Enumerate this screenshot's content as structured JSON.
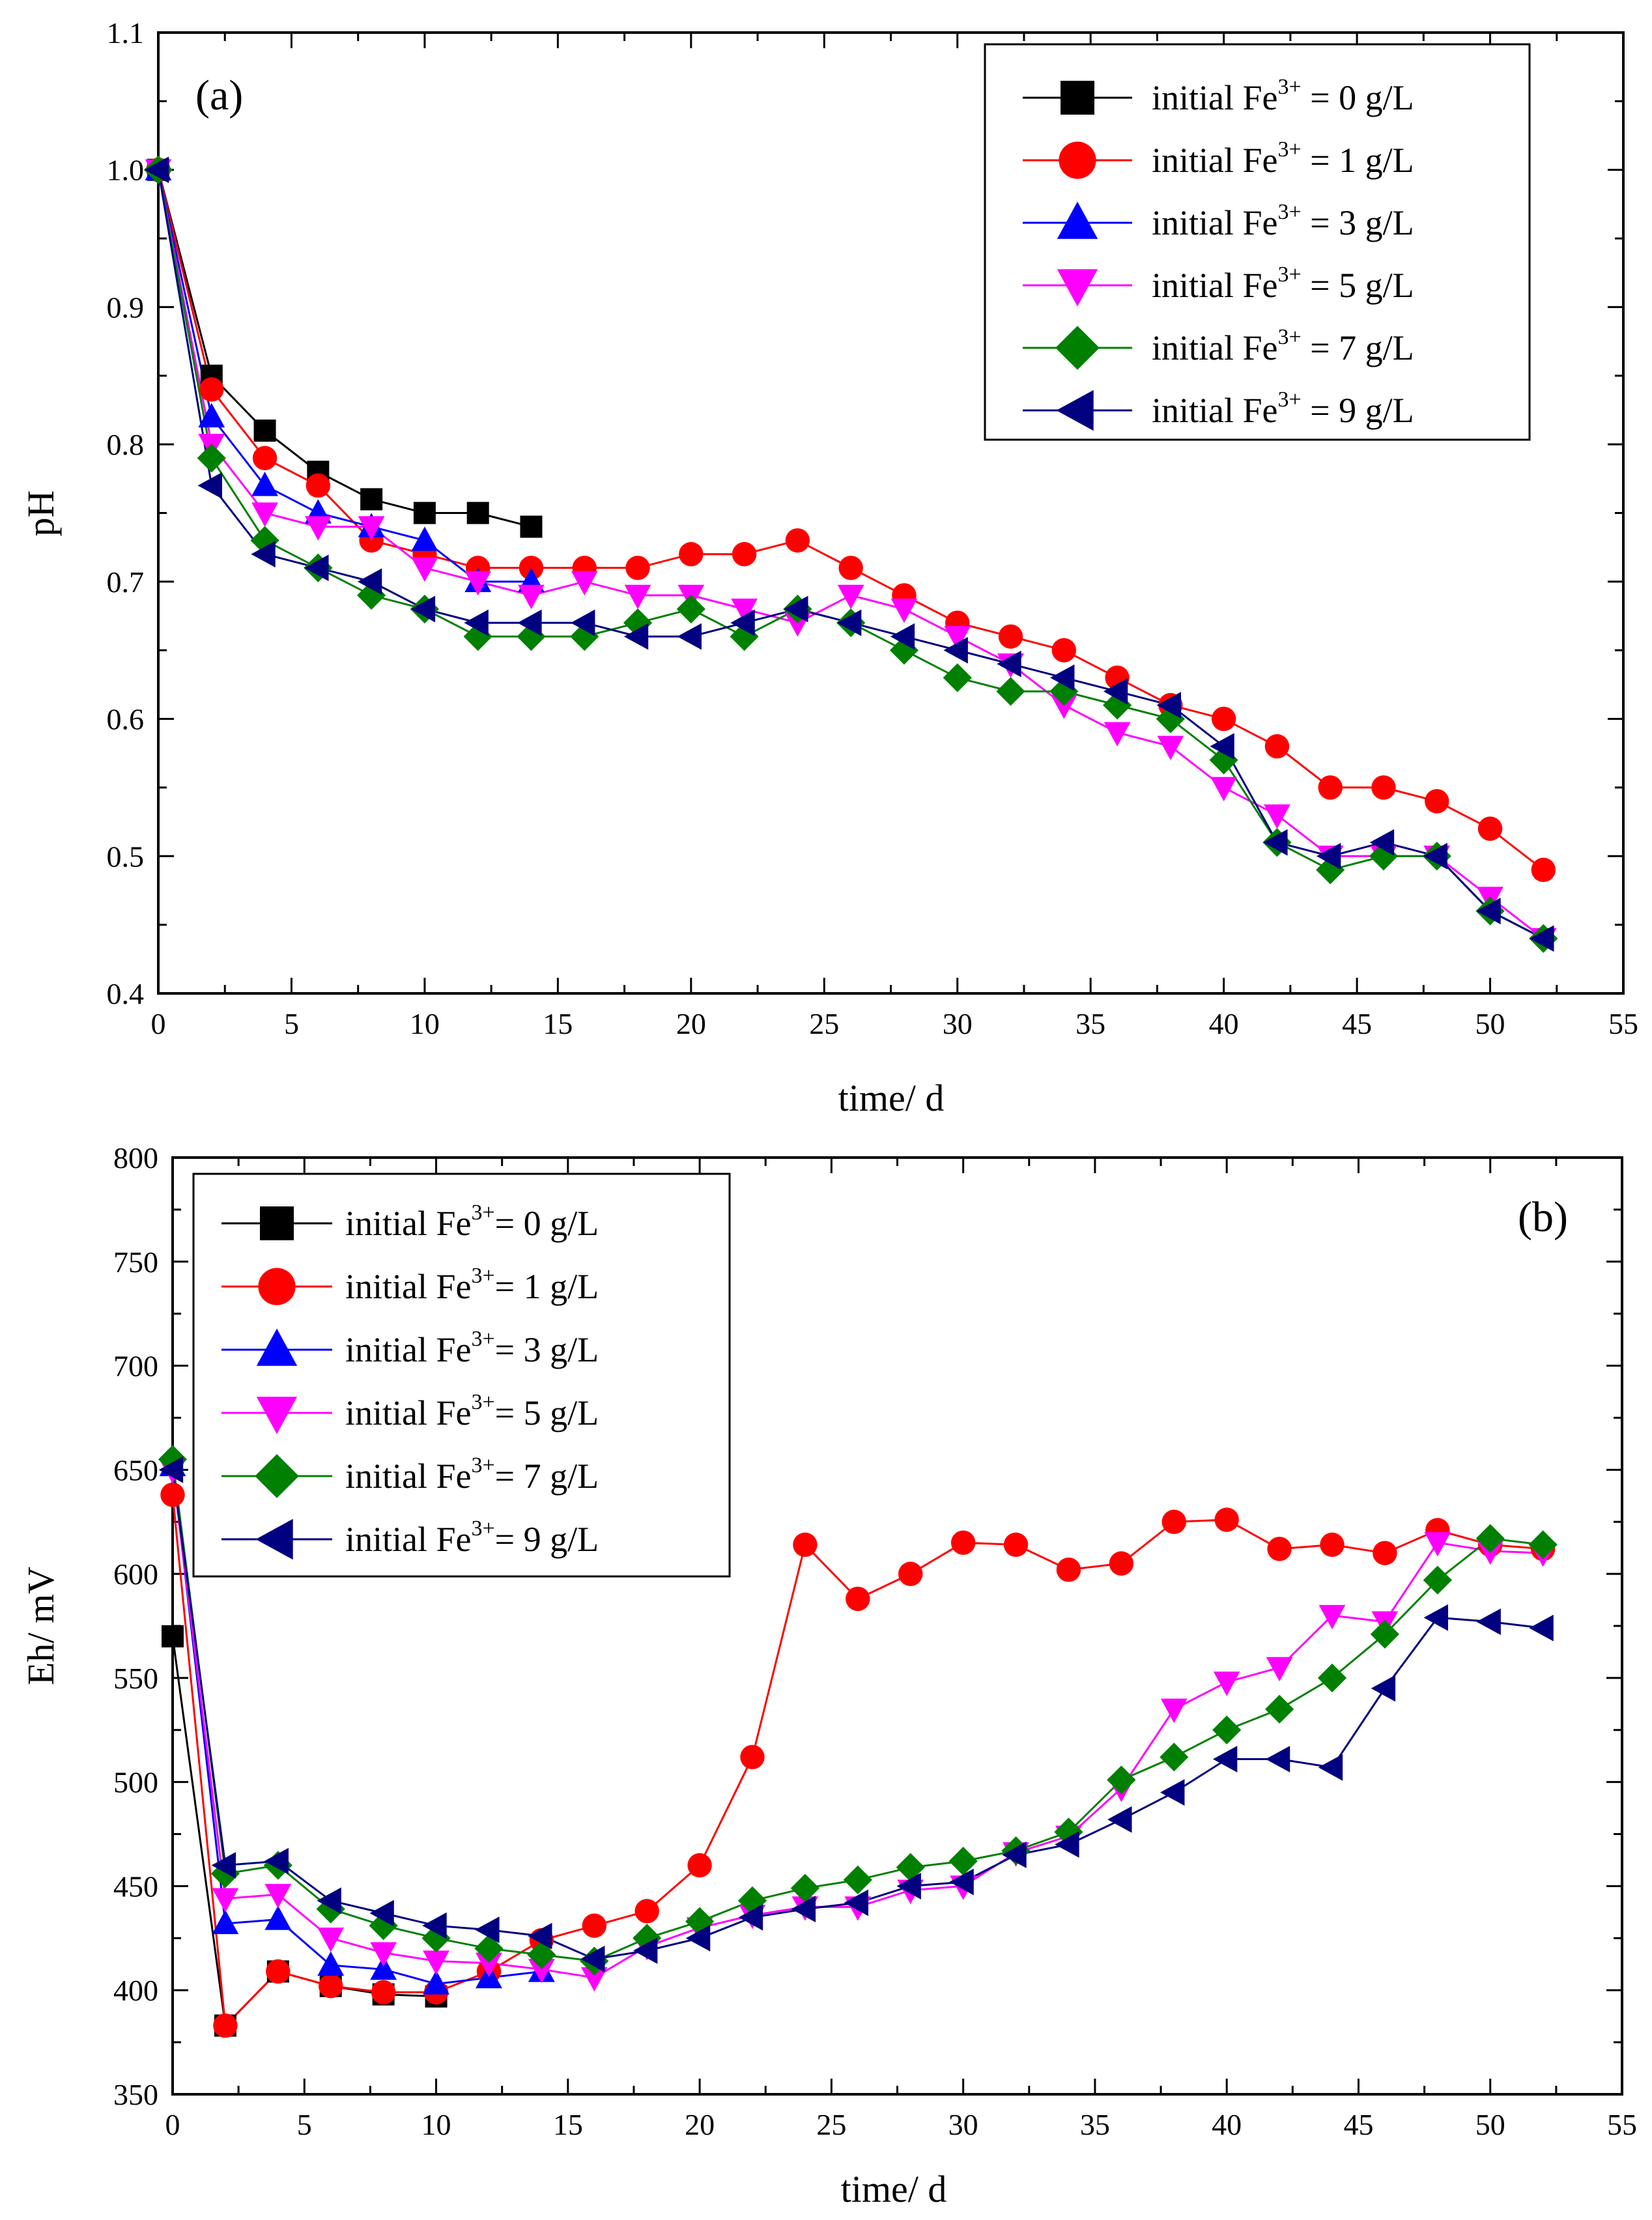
{
  "figure": {
    "legend_text_prefix": "initial Fe",
    "legend_text_sup": "3+",
    "colors": {
      "Fe0": "#000000",
      "Fe1": "#ff0000",
      "Fe3": "#0000ff",
      "Fe5": "#ff00ff",
      "Fe7": "#008000",
      "Fe9": "#000080"
    }
  },
  "chart_data": [
    {
      "id": "a",
      "type": "line",
      "panel_label": "(a)",
      "xlabel": "time/ d",
      "ylabel": "pH",
      "xlim": [
        0,
        55
      ],
      "ylim": [
        0.4,
        1.1
      ],
      "xticks": [
        0,
        5,
        10,
        15,
        20,
        25,
        30,
        35,
        40,
        45,
        50,
        55
      ],
      "yticks": [
        0.4,
        0.5,
        0.6,
        0.7,
        0.8,
        0.9,
        1.0,
        1.1
      ],
      "ytick_labels": [
        "0.4",
        "0.5",
        "0.6",
        "0.7",
        "0.8",
        "0.9",
        "1.0",
        "1.1"
      ],
      "legend_position": "top-right",
      "series": [
        {
          "key": "Fe0",
          "name": "initial Fe3+ = 0 g/L",
          "legend_suffix": "= 0 g/L",
          "marker": "square",
          "x": [
            0,
            2,
            4,
            6,
            8,
            10,
            12,
            14
          ],
          "y": [
            1.0,
            0.85,
            0.81,
            0.78,
            0.76,
            0.75,
            0.75,
            0.74
          ]
        },
        {
          "key": "Fe1",
          "name": "initial Fe3+ = 1 g/L",
          "legend_suffix": "= 1 g/L",
          "marker": "circle",
          "x": [
            0,
            2,
            4,
            6,
            8,
            10,
            12,
            14,
            16,
            18,
            20,
            22,
            24,
            26,
            28,
            30,
            32,
            34,
            36,
            38,
            40,
            42,
            44,
            46,
            48,
            50,
            52
          ],
          "y": [
            1.0,
            0.84,
            0.79,
            0.77,
            0.73,
            0.72,
            0.71,
            0.71,
            0.71,
            0.71,
            0.72,
            0.72,
            0.73,
            0.71,
            0.69,
            0.67,
            0.66,
            0.65,
            0.63,
            0.61,
            0.6,
            0.58,
            0.55,
            0.55,
            0.54,
            0.52,
            0.49
          ]
        },
        {
          "key": "Fe3",
          "name": "initial Fe3+ = 3 g/L",
          "legend_suffix": "= 3 g/L",
          "marker": "triangle-up",
          "x": [
            0,
            2,
            4,
            6,
            8,
            10,
            12,
            14
          ],
          "y": [
            1.0,
            0.82,
            0.77,
            0.75,
            0.74,
            0.73,
            0.7,
            0.7
          ]
        },
        {
          "key": "Fe5",
          "name": "initial Fe3+ = 5 g/L",
          "legend_suffix": "= 5 g/L",
          "marker": "triangle-down",
          "x": [
            0,
            2,
            4,
            6,
            8,
            10,
            12,
            14,
            16,
            18,
            20,
            22,
            24,
            26,
            28,
            30,
            32,
            34,
            36,
            38,
            40,
            42,
            44,
            46,
            48,
            50,
            52
          ],
          "y": [
            1.0,
            0.8,
            0.75,
            0.74,
            0.74,
            0.71,
            0.7,
            0.69,
            0.7,
            0.69,
            0.69,
            0.68,
            0.67,
            0.69,
            0.68,
            0.66,
            0.64,
            0.61,
            0.59,
            0.58,
            0.55,
            0.53,
            0.5,
            0.5,
            0.5,
            0.47,
            0.44
          ]
        },
        {
          "key": "Fe7",
          "name": "initial Fe3+ = 7 g/L",
          "legend_suffix": "= 7 g/L",
          "marker": "diamond",
          "x": [
            0,
            2,
            4,
            6,
            8,
            10,
            12,
            14,
            16,
            18,
            20,
            22,
            24,
            26,
            28,
            30,
            32,
            34,
            36,
            38,
            40,
            42,
            44,
            46,
            48,
            50,
            52
          ],
          "y": [
            1.0,
            0.79,
            0.73,
            0.71,
            0.69,
            0.68,
            0.66,
            0.66,
            0.66,
            0.67,
            0.68,
            0.66,
            0.68,
            0.67,
            0.65,
            0.63,
            0.62,
            0.62,
            0.61,
            0.6,
            0.57,
            0.51,
            0.49,
            0.5,
            0.5,
            0.46,
            0.44
          ]
        },
        {
          "key": "Fe9",
          "name": "initial Fe3+ = 9 g/L",
          "legend_suffix": "= 9 g/L",
          "marker": "triangle-left",
          "x": [
            0,
            2,
            4,
            6,
            8,
            10,
            12,
            14,
            16,
            18,
            20,
            22,
            24,
            26,
            28,
            30,
            32,
            34,
            36,
            38,
            40,
            42,
            44,
            46,
            48,
            50,
            52
          ],
          "y": [
            1.0,
            0.77,
            0.72,
            0.71,
            0.7,
            0.68,
            0.67,
            0.67,
            0.67,
            0.66,
            0.66,
            0.67,
            0.68,
            0.67,
            0.66,
            0.65,
            0.64,
            0.63,
            0.62,
            0.61,
            0.58,
            0.51,
            0.5,
            0.51,
            0.5,
            0.46,
            0.44
          ]
        }
      ]
    },
    {
      "id": "b",
      "type": "line",
      "panel_label": "(b)",
      "xlabel": "time/ d",
      "ylabel": "Eh/ mV",
      "xlim": [
        0,
        55
      ],
      "ylim": [
        350,
        800
      ],
      "xticks": [
        0,
        5,
        10,
        15,
        20,
        25,
        30,
        35,
        40,
        45,
        50,
        55
      ],
      "yticks": [
        350,
        400,
        450,
        500,
        550,
        600,
        650,
        700,
        750,
        800
      ],
      "ytick_labels": [
        "350",
        "400",
        "450",
        "500",
        "550",
        "600",
        "650",
        "700",
        "750",
        "800"
      ],
      "legend_position": "top-left",
      "series": [
        {
          "key": "Fe0",
          "name": "initial Fe3+= 0 g/L",
          "legend_suffix": "= 0 g/L",
          "marker": "square",
          "x": [
            0,
            2,
            4,
            6,
            8,
            10
          ],
          "y": [
            570,
            383,
            409,
            402,
            398,
            397
          ]
        },
        {
          "key": "Fe1",
          "name": "initial Fe3+= 1 g/L",
          "legend_suffix": "= 1 g/L",
          "marker": "circle",
          "x": [
            0,
            2,
            4,
            6,
            8,
            10,
            12,
            14,
            16,
            18,
            20,
            22,
            24,
            26,
            28,
            30,
            32,
            34,
            36,
            38,
            40,
            42,
            44,
            46,
            48,
            50,
            52
          ],
          "y": [
            638,
            383,
            409,
            402,
            399,
            399,
            409,
            424,
            431,
            438,
            460,
            512,
            614,
            588,
            600,
            615,
            614,
            602,
            605,
            625,
            626,
            612,
            614,
            610,
            621,
            614,
            612
          ]
        },
        {
          "key": "Fe3",
          "name": "initial Fe3+= 3 g/L",
          "legend_suffix": "= 3 g/L",
          "marker": "triangle-up",
          "x": [
            0,
            2,
            4,
            6,
            8,
            10,
            12,
            14
          ],
          "y": [
            652,
            432,
            434,
            412,
            410,
            403,
            406,
            409
          ]
        },
        {
          "key": "Fe5",
          "name": "initial Fe3+= 5 g/L",
          "legend_suffix": "= 5 g/L",
          "marker": "triangle-down",
          "x": [
            0,
            2,
            4,
            6,
            8,
            10,
            12,
            14,
            16,
            18,
            20,
            22,
            24,
            26,
            28,
            30,
            32,
            34,
            36,
            38,
            40,
            42,
            44,
            46,
            48,
            50,
            52
          ],
          "y": [
            650,
            444,
            446,
            425,
            418,
            414,
            413,
            410,
            406,
            421,
            430,
            436,
            440,
            440,
            448,
            450,
            466,
            474,
            497,
            535,
            548,
            555,
            580,
            577,
            615,
            611,
            610
          ]
        },
        {
          "key": "Fe7",
          "name": "initial Fe3+= 7 g/L",
          "legend_suffix": "= 7 g/L",
          "marker": "diamond",
          "x": [
            0,
            2,
            4,
            6,
            8,
            10,
            12,
            14,
            16,
            18,
            20,
            22,
            24,
            26,
            28,
            30,
            32,
            34,
            36,
            38,
            40,
            42,
            44,
            46,
            48,
            50,
            52
          ],
          "y": [
            655,
            456,
            460,
            439,
            431,
            425,
            420,
            417,
            414,
            425,
            433,
            443,
            449,
            453,
            459,
            462,
            467,
            476,
            501,
            512,
            525,
            535,
            550,
            571,
            597,
            617,
            614
          ]
        },
        {
          "key": "Fe9",
          "name": "initial Fe3+= 9 g/L",
          "legend_suffix": "= 9 g/L",
          "marker": "triangle-left",
          "x": [
            0,
            2,
            4,
            6,
            8,
            10,
            12,
            14,
            16,
            18,
            20,
            22,
            24,
            26,
            28,
            30,
            32,
            34,
            36,
            38,
            40,
            42,
            44,
            46,
            48,
            50,
            52
          ],
          "y": [
            650,
            460,
            462,
            443,
            437,
            431,
            429,
            426,
            415,
            419,
            425,
            435,
            439,
            442,
            450,
            452,
            465,
            470,
            482,
            495,
            511,
            511,
            507,
            545,
            579,
            577,
            574
          ]
        }
      ]
    }
  ]
}
